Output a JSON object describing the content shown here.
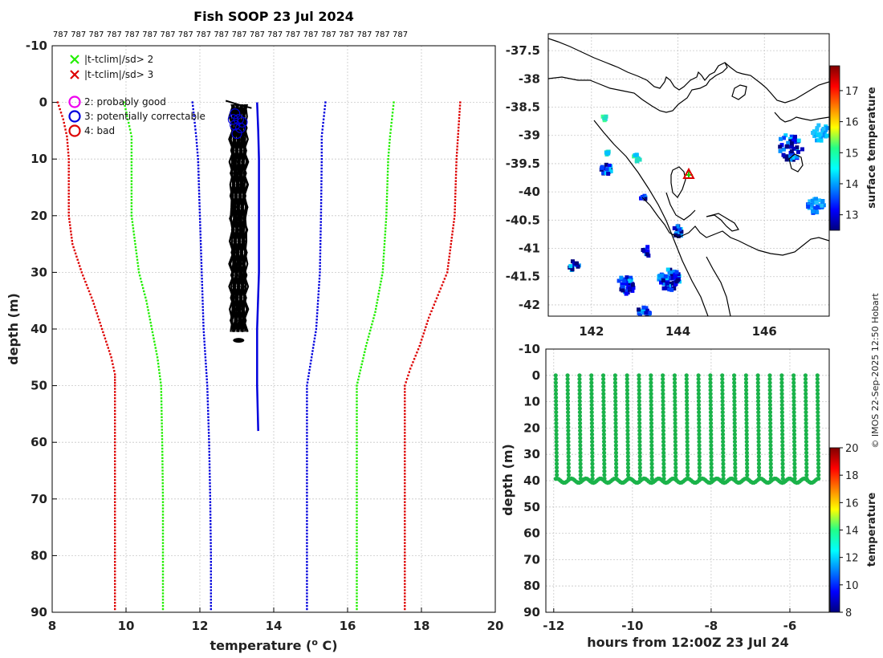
{
  "colors": {
    "red": "#dd0000",
    "green": "#22ee00",
    "blue": "#0000dd",
    "black": "#000000",
    "timeseries": "#1bb34a",
    "magenta": "#ee00ee",
    "coast": "#000000"
  },
  "chart_data": [
    {
      "id": "profile",
      "type": "line",
      "title": "Fish SOOP 23 Jul 2024",
      "top_labels": [
        "787",
        "787",
        "787",
        "787",
        "787",
        "787",
        "787",
        "787",
        "787",
        "787",
        "787",
        "787",
        "787",
        "787",
        "787",
        "787",
        "787",
        "787",
        "787",
        "787"
      ],
      "xlabel": "temperature (",
      "xlabel_sup": "o",
      "xlabel_end": " C)",
      "ylabel": "depth (m)",
      "xlim": [
        8,
        20
      ],
      "ylim": [
        -10,
        90
      ],
      "xticks": [
        8,
        10,
        12,
        14,
        16,
        18,
        20
      ],
      "yticks": [
        -10,
        0,
        10,
        20,
        30,
        40,
        50,
        60,
        70,
        80,
        90
      ],
      "legend": [
        {
          "marker": "x",
          "color": "#22ee00",
          "label": "|t-tclim|/sd> 2"
        },
        {
          "marker": "x",
          "color": "#dd0000",
          "label": "|t-tclim|/sd> 3"
        },
        {
          "marker": "o",
          "color": "#ee00ee",
          "label": "2: probably good"
        },
        {
          "marker": "o",
          "color": "#0000dd",
          "label": "3: potentially correctable"
        },
        {
          "marker": "o",
          "color": "#dd0000",
          "label": "4: bad"
        }
      ],
      "series": [
        {
          "name": "clim -3sd",
          "color": "#dd0000",
          "points": [
            [
              8.15,
              0
            ],
            [
              8.3,
              3
            ],
            [
              8.4,
              6
            ],
            [
              8.45,
              10
            ],
            [
              8.45,
              15
            ],
            [
              8.45,
              20
            ],
            [
              8.55,
              25
            ],
            [
              8.8,
              30
            ],
            [
              9.1,
              35
            ],
            [
              9.35,
              40
            ],
            [
              9.6,
              45
            ],
            [
              9.7,
              48
            ],
            [
              9.7,
              50
            ],
            [
              9.7,
              60
            ],
            [
              9.7,
              70
            ],
            [
              9.7,
              80
            ],
            [
              9.7,
              90
            ]
          ]
        },
        {
          "name": "clim -2sd",
          "color": "#22ee00",
          "points": [
            [
              9.95,
              0
            ],
            [
              10.05,
              3
            ],
            [
              10.15,
              6
            ],
            [
              10.15,
              10
            ],
            [
              10.15,
              20
            ],
            [
              10.25,
              25
            ],
            [
              10.35,
              30
            ],
            [
              10.55,
              35
            ],
            [
              10.7,
              40
            ],
            [
              10.85,
              45
            ],
            [
              10.95,
              50
            ],
            [
              10.98,
              60
            ],
            [
              11.0,
              70
            ],
            [
              11.0,
              80
            ],
            [
              11.0,
              90
            ]
          ]
        },
        {
          "name": "clim -1sd",
          "color": "#0000dd",
          "points": [
            [
              11.8,
              0
            ],
            [
              11.85,
              3
            ],
            [
              11.9,
              6
            ],
            [
              11.95,
              10
            ],
            [
              12.0,
              20
            ],
            [
              12.05,
              30
            ],
            [
              12.1,
              40
            ],
            [
              12.2,
              50
            ],
            [
              12.25,
              60
            ],
            [
              12.28,
              70
            ],
            [
              12.3,
              80
            ],
            [
              12.3,
              90
            ]
          ]
        },
        {
          "name": "clim +1sd",
          "color": "#0000dd",
          "points": [
            [
              15.4,
              0
            ],
            [
              15.35,
              3
            ],
            [
              15.3,
              6
            ],
            [
              15.3,
              10
            ],
            [
              15.28,
              20
            ],
            [
              15.25,
              30
            ],
            [
              15.15,
              40
            ],
            [
              14.9,
              50
            ],
            [
              14.9,
              60
            ],
            [
              14.9,
              70
            ],
            [
              14.9,
              80
            ],
            [
              14.9,
              90
            ]
          ]
        },
        {
          "name": "clim +2sd",
          "color": "#22ee00",
          "points": [
            [
              17.25,
              0
            ],
            [
              17.2,
              3
            ],
            [
              17.15,
              6
            ],
            [
              17.1,
              10
            ],
            [
              17.05,
              20
            ],
            [
              16.95,
              30
            ],
            [
              16.75,
              37
            ],
            [
              16.5,
              43
            ],
            [
              16.25,
              50
            ],
            [
              16.25,
              60
            ],
            [
              16.25,
              70
            ],
            [
              16.25,
              80
            ],
            [
              16.25,
              90
            ]
          ]
        },
        {
          "name": "clim +3sd",
          "color": "#dd0000",
          "points": [
            [
              19.05,
              0
            ],
            [
              19.0,
              5
            ],
            [
              18.95,
              10
            ],
            [
              18.9,
              20
            ],
            [
              18.7,
              30
            ],
            [
              18.2,
              38
            ],
            [
              17.95,
              43
            ],
            [
              17.7,
              47
            ],
            [
              17.55,
              50
            ],
            [
              17.55,
              60
            ],
            [
              17.55,
              70
            ],
            [
              17.55,
              80
            ],
            [
              17.55,
              90
            ]
          ]
        },
        {
          "name": "climatology mean",
          "color": "#0000dd",
          "width": 2.5,
          "points": [
            [
              13.55,
              0
            ],
            [
              13.58,
              5
            ],
            [
              13.6,
              10
            ],
            [
              13.6,
              20
            ],
            [
              13.6,
              30
            ],
            [
              13.55,
              40
            ],
            [
              13.55,
              50
            ],
            [
              13.58,
              58
            ]
          ]
        },
        {
          "name": "profile",
          "color": "#000000",
          "width": 2,
          "points": [
            [
              12.7,
              -0.3
            ],
            [
              13.1,
              0.5
            ],
            [
              13.4,
              1
            ]
          ]
        }
      ],
      "profile_band": {
        "x": [
          12.85,
          13.25
        ],
        "depth": [
          0.5,
          42
        ]
      },
      "flag_circles": [
        [
          12.95,
          2
        ],
        [
          13.05,
          3
        ],
        [
          12.95,
          4
        ],
        [
          13.1,
          4.5
        ],
        [
          13.0,
          5.5
        ],
        [
          13.15,
          3.5
        ],
        [
          12.9,
          3
        ]
      ]
    },
    {
      "id": "map",
      "type": "heatmap",
      "xlim": [
        141,
        147.5
      ],
      "ylim": [
        -42.2,
        -37.2
      ],
      "xticks": [
        142,
        144,
        146
      ],
      "yticks": [
        -37.5,
        -38,
        -38.5,
        -39,
        -39.5,
        -40,
        -40.5,
        -41,
        -41.5,
        -42
      ],
      "colorbar_label": "surface temperature",
      "colorbar_range": [
        12.5,
        17.8
      ],
      "colorbar_ticks": [
        13,
        14,
        15,
        16,
        17
      ],
      "marker": {
        "lon": 144.25,
        "lat": -39.7
      }
    },
    {
      "id": "timeseries",
      "type": "scatter",
      "xlabel": "hours from 12:00Z 23 Jul 24",
      "ylabel": "depth (m)",
      "xlim": [
        -12.2,
        -5.0
      ],
      "ylim": [
        -10,
        90
      ],
      "xticks": [
        -12,
        -10,
        -8,
        -6
      ],
      "yticks": [
        -10,
        0,
        10,
        20,
        30,
        40,
        50,
        60,
        70,
        80,
        90
      ],
      "colorbar_label": "temperature",
      "colorbar_range": [
        8,
        20
      ],
      "colorbar_ticks": [
        8,
        10,
        12,
        14,
        16,
        18,
        20
      ],
      "casts_start": -11.95,
      "casts_end": -5.3,
      "cast_count": 23,
      "bottom_depth": 40
    }
  ],
  "watermark": "© IMOS 22-Sep-2025 12:50 Hobart"
}
